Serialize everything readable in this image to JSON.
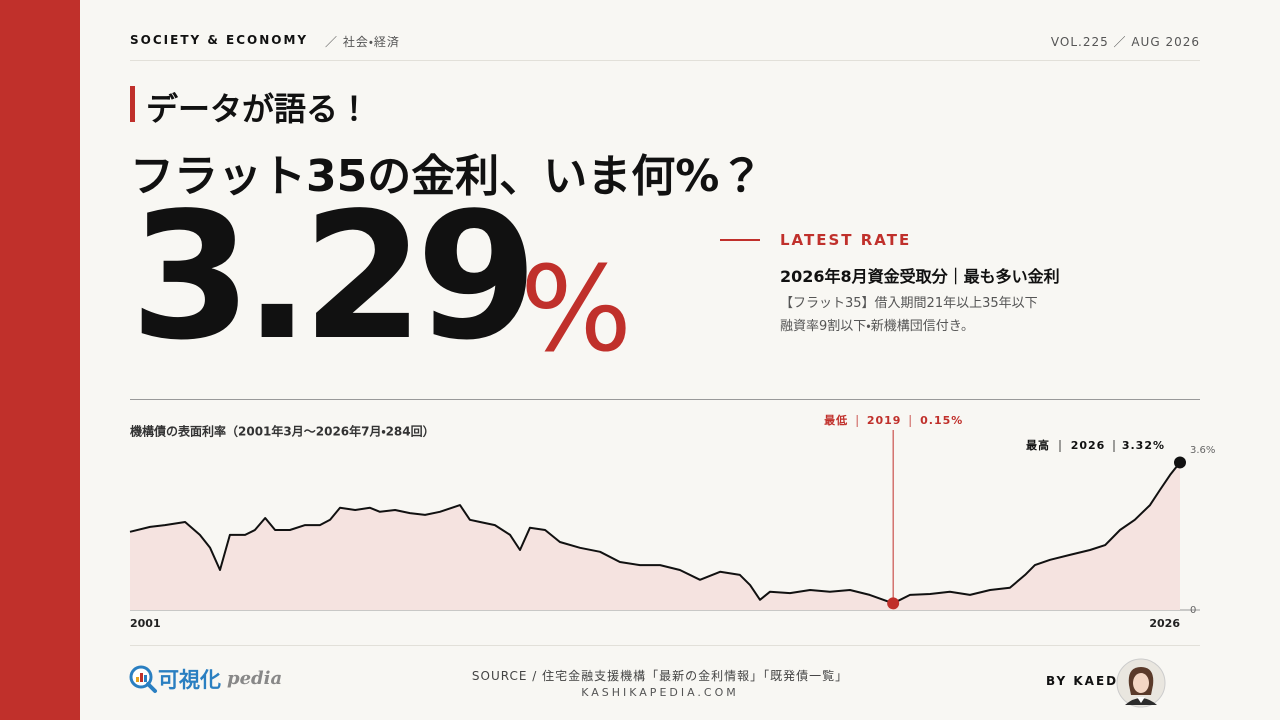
{
  "header": {
    "section": "SOCIETY & ECONOMY",
    "section_ja": "／ 社会・経済",
    "issue": "VOL.225 ／ AUG 2026"
  },
  "kicker": "データが語る！",
  "headline": "フラット35の金利、いま何%？",
  "latest": {
    "number": "3.29",
    "unit": "%",
    "label": "LATEST RATE",
    "subtitle": "2026年8月資金受取分｜最も多い金利",
    "description": [
      "【フラット35】借入期間21年以上35年以下",
      "融資率9割以下・新機構団信付き。"
    ]
  },
  "chart_data": {
    "type": "area",
    "title": "機構債の表面利率（2001年3月～2026年7月・284回）",
    "color": "#111111",
    "fill": "#f5e3e0",
    "x": [
      2001.0,
      2001.49,
      2001.85,
      2002.34,
      2002.7,
      2002.95,
      2003.19,
      2003.43,
      2003.8,
      2004.04,
      2004.29,
      2004.53,
      2004.89,
      2005.26,
      2005.62,
      2005.87,
      2006.11,
      2006.48,
      2006.84,
      2007.08,
      2007.45,
      2007.81,
      2008.18,
      2008.54,
      2009.03,
      2009.27,
      2009.52,
      2009.88,
      2010.25,
      2010.49,
      2010.73,
      2011.1,
      2011.46,
      2011.95,
      2012.44,
      2012.92,
      2013.41,
      2013.9,
      2014.38,
      2014.87,
      2015.36,
      2015.84,
      2016.09,
      2016.33,
      2016.57,
      2017.06,
      2017.55,
      2018.03,
      2018.52,
      2019.0,
      2019.57,
      2019.98,
      2020.47,
      2020.95,
      2021.44,
      2021.93,
      2022.41,
      2022.78,
      2023.02,
      2023.39,
      2023.87,
      2024.36,
      2024.73,
      2025.09,
      2025.45,
      2025.82,
      2026.06,
      2026.31,
      2026.55
    ],
    "values": [
      1.76,
      1.87,
      1.91,
      1.98,
      1.69,
      1.4,
      0.9,
      1.69,
      1.69,
      1.8,
      2.07,
      1.8,
      1.8,
      1.91,
      1.91,
      2.03,
      2.3,
      2.25,
      2.3,
      2.21,
      2.25,
      2.18,
      2.14,
      2.21,
      2.36,
      2.03,
      1.98,
      1.91,
      1.69,
      1.35,
      1.85,
      1.8,
      1.53,
      1.4,
      1.31,
      1.08,
      1.01,
      1.01,
      0.9,
      0.68,
      0.86,
      0.79,
      0.56,
      0.23,
      0.41,
      0.38,
      0.45,
      0.41,
      0.45,
      0.34,
      0.15,
      0.34,
      0.36,
      0.41,
      0.34,
      0.45,
      0.5,
      0.79,
      1.01,
      1.13,
      1.24,
      1.35,
      1.46,
      1.8,
      2.03,
      2.36,
      2.7,
      3.04,
      3.32
    ],
    "xlim": [
      2001,
      2026.55
    ],
    "xticks": [
      2001,
      2026
    ],
    "ylim": [
      0,
      3.6
    ],
    "yticks": [
      0,
      {
        "value": 3.6,
        "label": "3.6%"
      }
    ],
    "highlight_color": "#c0302b",
    "annotations": {
      "min": {
        "title": "最低",
        "year": "2019",
        "value": "0.15%"
      },
      "max": {
        "title": "最高",
        "year": "2026",
        "value": "3.32%"
      }
    }
  },
  "footer": {
    "logo_main": "可視化",
    "logo_sub": "pedia",
    "source": "SOURCE / 住宅金融支援機構「最新の金利情報」「既発債一覧」",
    "url": "KASHIKAPEDIA.COM",
    "byline": "BY KAEDE"
  }
}
